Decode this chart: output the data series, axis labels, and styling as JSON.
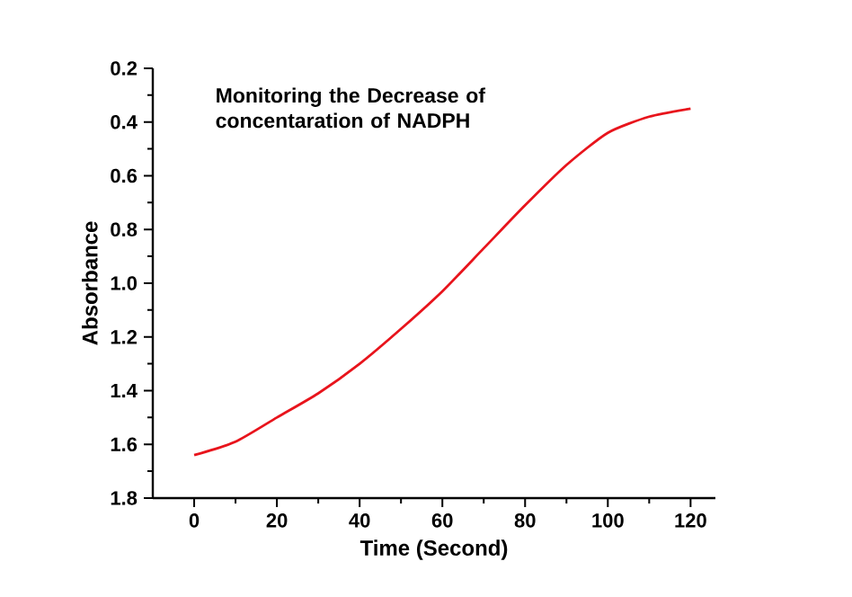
{
  "chart_data": {
    "type": "line",
    "title": "Monitoring the Decrease of concentaration of NADPH",
    "xlabel": "Time (Second)",
    "ylabel": "Absorbance",
    "x": [
      0,
      10,
      20,
      30,
      40,
      50,
      60,
      70,
      80,
      90,
      100,
      110,
      120
    ],
    "series": [
      {
        "color": "#e8141c",
        "values": [
          1.64,
          1.59,
          1.5,
          1.41,
          1.3,
          1.17,
          1.03,
          0.87,
          0.71,
          0.56,
          0.44,
          0.38,
          0.35
        ]
      }
    ],
    "xlim": [
      -10,
      126
    ],
    "ylim": [
      1.8,
      0.2
    ],
    "xticks": [
      0,
      20,
      40,
      60,
      80,
      100,
      120
    ],
    "yticks": [
      {
        "value": 0.2,
        "label": "0.2"
      },
      {
        "value": 0.4,
        "label": "0.4"
      },
      {
        "value": 0.6,
        "label": "0.6"
      },
      {
        "value": 0.8,
        "label": "0.8"
      },
      {
        "value": 1.0,
        "label": "1.0"
      },
      {
        "value": 1.2,
        "label": "1.2"
      },
      {
        "value": 1.4,
        "label": "1.4"
      },
      {
        "value": 1.6,
        "label": "1.6"
      },
      {
        "value": 1.8,
        "label": "1.8"
      }
    ],
    "grid": false,
    "marker": "none",
    "line_style": "solid"
  }
}
